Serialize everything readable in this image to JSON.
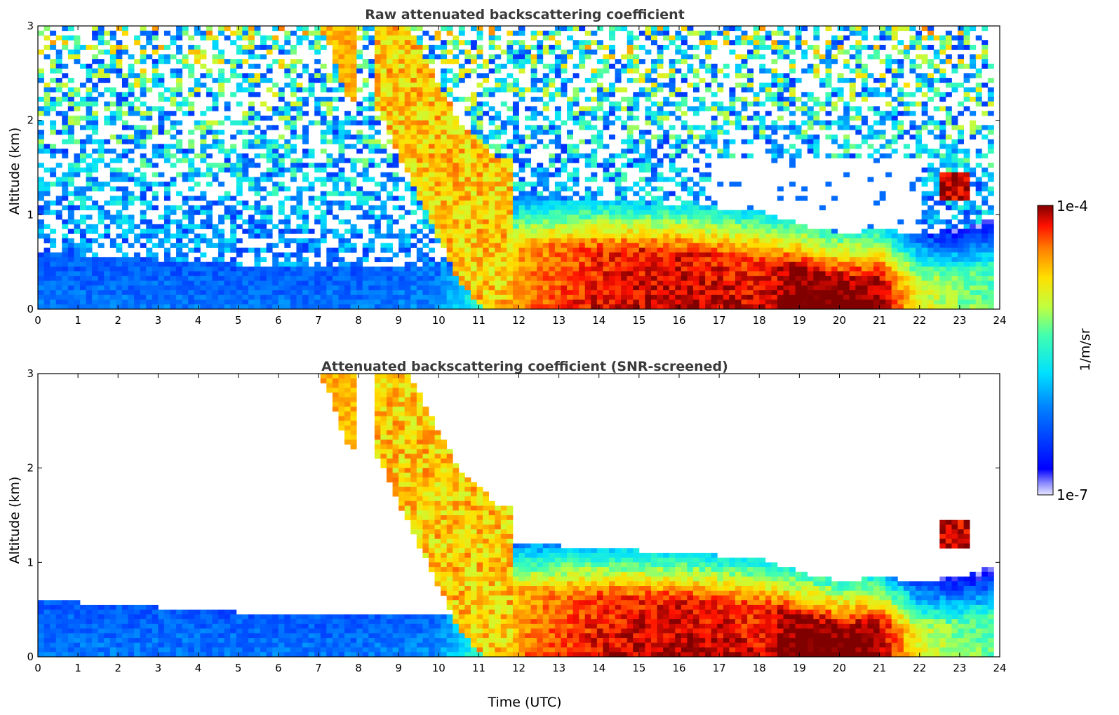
{
  "chart_data": [
    {
      "type": "heatmap",
      "id": "raw",
      "title": "Raw attenuated backscattering coefficient",
      "xlabel": "",
      "ylabel": "Altitude (km)",
      "xlim": [
        0,
        24
      ],
      "ylim": [
        0,
        3
      ],
      "xticks": [
        0,
        1,
        2,
        3,
        4,
        5,
        6,
        7,
        8,
        9,
        10,
        11,
        12,
        13,
        14,
        15,
        16,
        17,
        18,
        19,
        20,
        21,
        22,
        23,
        24
      ],
      "yticks": [
        0,
        1,
        2,
        3
      ],
      "layers": [
        {
          "name": "boundary layer",
          "x": [
            0,
            2,
            4,
            6,
            8,
            10,
            11,
            12,
            14,
            16,
            18,
            19,
            20,
            21,
            22,
            23,
            23.8
          ],
          "top_km": [
            0.6,
            0.55,
            0.5,
            0.45,
            0.45,
            0.45,
            0.5,
            0.7,
            0.65,
            0.6,
            0.55,
            0.4,
            0.3,
            0.35,
            0.3,
            0.35,
            0.45
          ],
          "log10_value": [
            -6.3,
            -6.3,
            -6.3,
            -6.3,
            -6.3,
            -6.2,
            -5.6,
            -4.6,
            -4.3,
            -4.2,
            -4.3,
            -4.0,
            -4.0,
            -4.1,
            -5.0,
            -5.3,
            -5.4
          ]
        },
        {
          "name": "fall streak 1",
          "x": [
            7.2,
            7.5,
            7.8
          ],
          "top_km": [
            3,
            2.6,
            2.3
          ],
          "log10_value": -4.6
        },
        {
          "name": "fall streak 2",
          "x": [
            8.5,
            9.5,
            10.5,
            11.5
          ],
          "top_km": [
            3,
            2.2,
            1.4,
            1.0
          ],
          "log10_value": -4.7
        },
        {
          "name": "cloud 23h",
          "x": [
            22.5,
            23.0,
            23.3
          ],
          "top_km": [
            1.45,
            1.4,
            1.45
          ],
          "log10_value": -4.1
        }
      ],
      "noise_floor_log10": -6.5,
      "colorbar": {
        "label": "1/m/sr",
        "min": "1e-7",
        "max": "1e-4",
        "scale": "log"
      }
    },
    {
      "type": "heatmap",
      "id": "snr",
      "title": "Attenuated backscattering coefficient (SNR-screened)",
      "xlabel": "Time (UTC)",
      "ylabel": "Altitude (km)",
      "xlim": [
        0,
        24
      ],
      "ylim": [
        0,
        3
      ],
      "xticks": [
        0,
        1,
        2,
        3,
        4,
        5,
        6,
        7,
        8,
        9,
        10,
        11,
        12,
        13,
        14,
        15,
        16,
        17,
        18,
        19,
        20,
        21,
        22,
        23,
        24
      ],
      "yticks": [
        0,
        1,
        2,
        3
      ],
      "screened": true
    }
  ],
  "colorbar": {
    "label": "1/m/sr",
    "top_label": "1e-4",
    "bottom_label": "1e-7"
  }
}
